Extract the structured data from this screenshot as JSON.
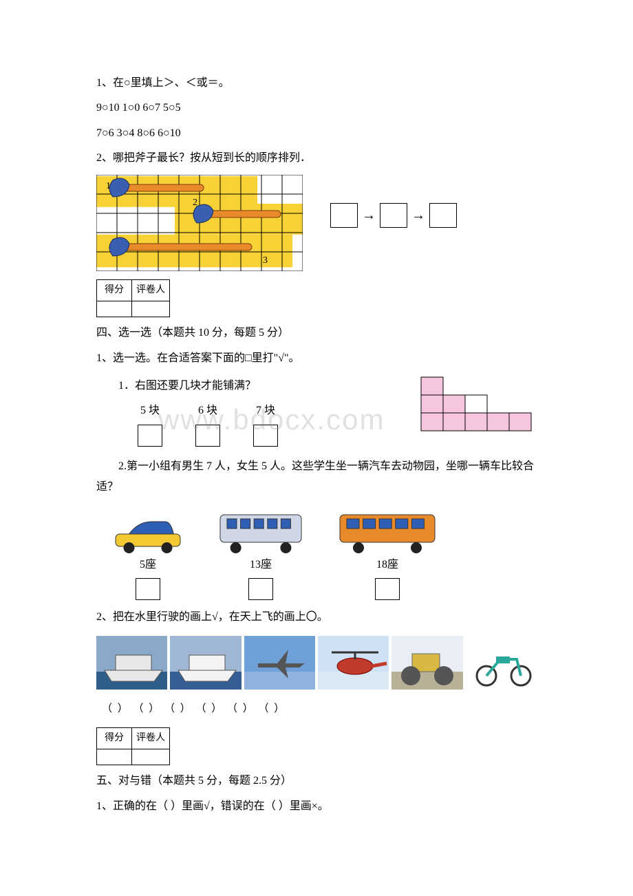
{
  "q1": {
    "prompt": "1、在○里填上＞、＜或＝。",
    "row1": "9○10 1○0 6○7 5○5",
    "row2": "7○6 3○4 8○6 6○10"
  },
  "q2": {
    "prompt": "2、哪把斧子最长？按从短到长的顺序排列．",
    "axes": {
      "labels": [
        "1",
        "2",
        "3"
      ],
      "grid_cols": 10,
      "grid_rows": 5,
      "bg": "#f7d236",
      "handle": "#e98a2a",
      "head": "#3a5fb0",
      "grid": "#000000"
    }
  },
  "score_table": {
    "col1": "得分",
    "col2": "评卷人"
  },
  "section4": {
    "title": " 四、选一选（本题共 10 分，每题 5 分）",
    "q1_prompt": "1、选一选。在合适答案下面的□里打\"√\"。",
    "tiles": {
      "question": "1．右图还要几块才能铺满？",
      "options": [
        "5 块",
        "6 块",
        "7 块"
      ],
      "grid": {
        "rows": 3,
        "cols": 5,
        "fill": "#f6c6de",
        "border": "#000000",
        "filled": [
          [
            0,
            0
          ],
          [
            1,
            0
          ],
          [
            1,
            1
          ],
          [
            2,
            0
          ],
          [
            2,
            1
          ],
          [
            2,
            2
          ],
          [
            2,
            3
          ],
          [
            2,
            4
          ]
        ]
      }
    },
    "bus": {
      "question": "2.第一小组有男生 7 人，女生 5 人。这些学生坐一辆汽车去动物园，坐哪一辆车比较合适？",
      "options": [
        {
          "seat": "5座",
          "colors": {
            "body": "#f4c931",
            "trim": "#2f5fb5"
          }
        },
        {
          "seat": "13座",
          "colors": {
            "body": "#cfd7e6",
            "trim": "#2f5fb5"
          }
        },
        {
          "seat": "18座",
          "colors": {
            "body": "#e98a2a",
            "trim": "#2f5fb5"
          }
        }
      ]
    },
    "q2_prompt": "2、把在水里行驶的画上√，在天上飞的画上〇。",
    "photos": [
      {
        "name": "ship1",
        "sky": "#8aa8c8",
        "subj": "#e8e8e8",
        "sea": "#2f5f88"
      },
      {
        "name": "ship2",
        "sky": "#9fb7d4",
        "subj": "#f3f3f3",
        "sea": "#355f94"
      },
      {
        "name": "plane",
        "sky": "#6fa0d8",
        "subj": "#555555",
        "sea": "#8fb4e0"
      },
      {
        "name": "helicopter",
        "sky": "#cfe2f3",
        "subj": "#c0392b",
        "sea": "#dbe9f5"
      },
      {
        "name": "roller",
        "sky": "#e8eef3",
        "subj": "#d8b842",
        "sea": "#b9b098"
      },
      {
        "name": "ebike",
        "sky": "#ffffff",
        "subj": "#2aa79b",
        "sea": "#ffffff"
      }
    ],
    "paren_row": "（ ）  （ ）  （ ）  （ ）  （ ）  （ ）"
  },
  "section5": {
    "title": " 五、对与错（本题共 5 分，每题 2.5 分）",
    "q1": "1、正确的在（ ）里画√，错误的在（ ）里画×。"
  },
  "watermark": "www.bdocx.com"
}
